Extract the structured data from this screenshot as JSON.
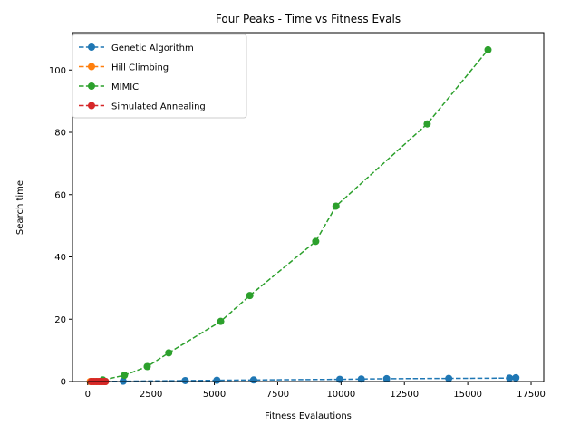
{
  "chart_data": {
    "type": "line",
    "title": "Four Peaks - Time vs Fitness Evals",
    "xlabel": "Fitness Evalautions",
    "ylabel": "Search time",
    "xlim": [
      -600,
      18000
    ],
    "ylim": [
      0,
      112
    ],
    "xticks": [
      0,
      2500,
      5000,
      7500,
      10000,
      12500,
      15000,
      17500
    ],
    "yticks": [
      0,
      20,
      40,
      60,
      80,
      100
    ],
    "legend_position": "top-left",
    "grid": false,
    "series": [
      {
        "name": "Genetic Algorithm",
        "color": "#1f77b4",
        "x": [
          120,
          1400,
          3850,
          5100,
          6550,
          9950,
          10800,
          11800,
          14250,
          16650,
          16900
        ],
        "y": [
          0.0,
          0.1,
          0.3,
          0.4,
          0.5,
          0.7,
          0.8,
          0.9,
          1.0,
          1.1,
          1.2
        ]
      },
      {
        "name": "Hill Climbing",
        "color": "#ff7f0e",
        "x": [
          100,
          200,
          300,
          400,
          500,
          600,
          700
        ],
        "y": [
          0.0,
          0.0,
          0.0,
          0.0,
          0.0,
          0.0,
          0.0
        ]
      },
      {
        "name": "MIMIC",
        "color": "#2ca02c",
        "x": [
          600,
          1450,
          2350,
          3200,
          5250,
          6400,
          9000,
          9800,
          13400,
          15800
        ],
        "y": [
          0.5,
          2.0,
          4.8,
          9.2,
          19.3,
          27.6,
          45.0,
          56.3,
          82.7,
          106.5
        ]
      },
      {
        "name": "Simulated Annealing",
        "color": "#d62728",
        "x": [
          150,
          250,
          350,
          450,
          550,
          650,
          700
        ],
        "y": [
          0.0,
          0.0,
          0.0,
          0.0,
          0.0,
          0.0,
          0.0
        ]
      }
    ]
  }
}
